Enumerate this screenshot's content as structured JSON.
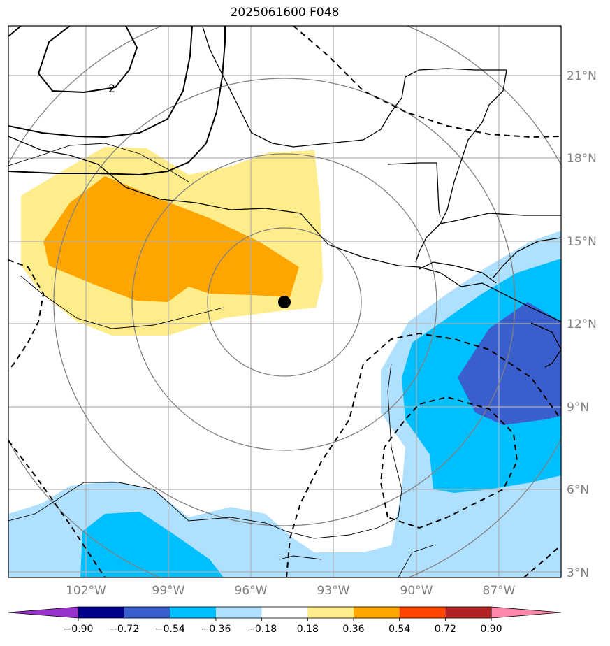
{
  "title": "2025061600 F048",
  "map": {
    "lat_labels": [
      "21°N",
      "18°N",
      "15°N",
      "12°N",
      "9°N",
      "6°N",
      "3°N"
    ],
    "lon_labels": [
      "102°W",
      "99°W",
      "96°W",
      "93°W",
      "90°W",
      "87°W"
    ],
    "contour_label": "2",
    "storm_marker": {
      "lon": -94.8,
      "lat": 12.8
    },
    "shading_colors": {
      "light_yellow": "#ffec8b",
      "orange": "#ffa500",
      "light_blue": "#b0e0ff",
      "blue": "#00bfff",
      "dark_blue": "#3a5fcd"
    }
  },
  "colorbar": {
    "ticks": [
      "−0.90",
      "−0.72",
      "−0.54",
      "−0.36",
      "−0.18",
      "0.18",
      "0.36",
      "0.54",
      "0.72",
      "0.90"
    ],
    "colors": [
      "#9932cc",
      "#00008b",
      "#3a5fcd",
      "#00bfff",
      "#b0e0ff",
      "#ffffff",
      "#ffec8b",
      "#ffa500",
      "#ff4500",
      "#b22222",
      "#ff88aa"
    ]
  }
}
